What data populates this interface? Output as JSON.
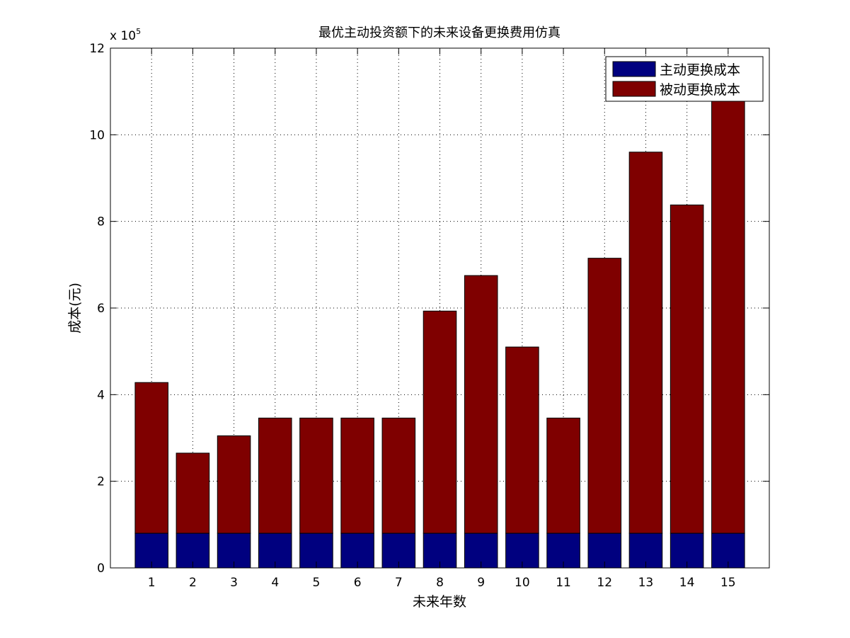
{
  "chart_data": {
    "type": "bar",
    "stacked": true,
    "title": "最优主动投资额下的未来设备更换费用仿真",
    "xlabel": "未来年数",
    "ylabel": "成本(元)",
    "y_exponent_label": "x 10",
    "y_exponent_power": "5",
    "categories": [
      "1",
      "2",
      "3",
      "4",
      "5",
      "6",
      "7",
      "8",
      "9",
      "10",
      "11",
      "12",
      "13",
      "14",
      "15"
    ],
    "ylim": [
      0,
      1200000
    ],
    "yticks": [
      0,
      200000,
      400000,
      600000,
      800000,
      1000000,
      1200000
    ],
    "ytick_labels": [
      "0",
      "2",
      "4",
      "6",
      "8",
      "10",
      "12"
    ],
    "grid": true,
    "legend_position": "top-right",
    "series": [
      {
        "name": "主动更换成本",
        "color": "#00007f",
        "values": [
          80000,
          80000,
          80000,
          80000,
          80000,
          80000,
          80000,
          80000,
          80000,
          80000,
          80000,
          80000,
          80000,
          80000,
          80000
        ]
      },
      {
        "name": "被动更换成本",
        "color": "#7f0000",
        "values": [
          348000,
          185000,
          225000,
          266000,
          266000,
          266000,
          266000,
          513000,
          595000,
          430000,
          266000,
          635000,
          880000,
          758000,
          1000000
        ]
      }
    ]
  }
}
